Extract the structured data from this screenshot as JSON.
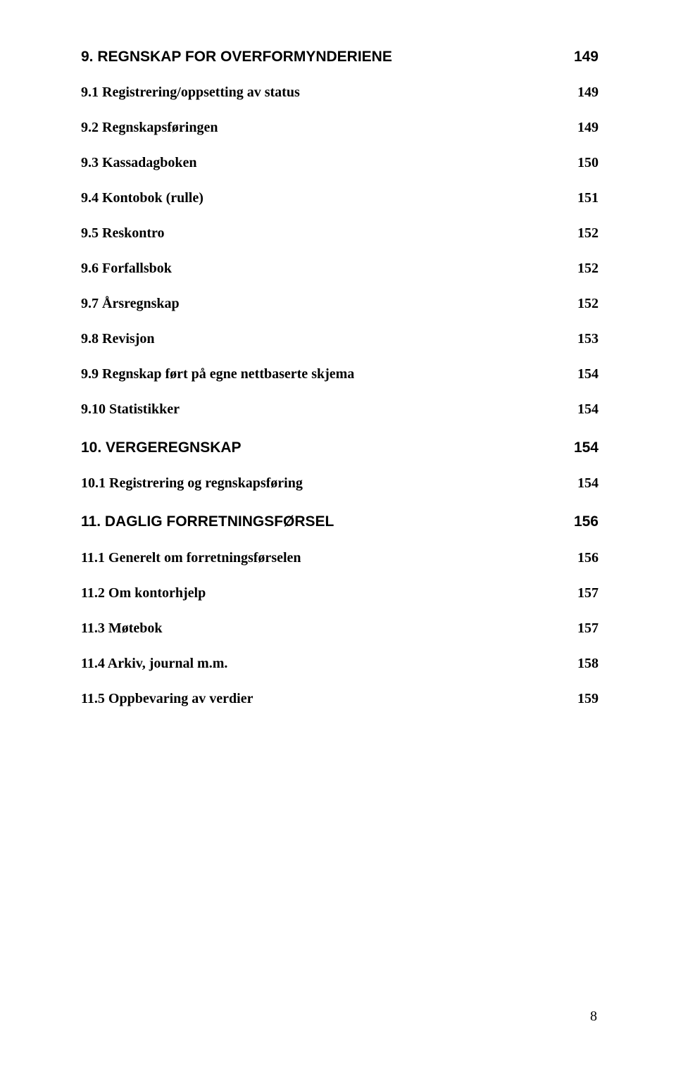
{
  "sec9": {
    "title": "9. REGNSKAP FOR OVERFORMYNDERIENE",
    "page": "149",
    "items": [
      {
        "label": "9.1 Registrering/oppsetting av status",
        "page": "149"
      },
      {
        "label": "9.2 Regnskapsføringen",
        "page": "149"
      },
      {
        "label": "9.3 Kassadagboken",
        "page": "150"
      },
      {
        "label": "9.4 Kontobok (rulle)",
        "page": "151"
      },
      {
        "label": "9.5 Reskontro",
        "page": "152"
      },
      {
        "label": "9.6 Forfallsbok",
        "page": "152"
      },
      {
        "label": "9.7 Årsregnskap",
        "page": "152"
      },
      {
        "label": "9.8 Revisjon",
        "page": "153"
      },
      {
        "label": "9.9 Regnskap ført på egne nettbaserte skjema",
        "page": "154"
      },
      {
        "label": "9.10 Statistikker",
        "page": "154"
      }
    ]
  },
  "sec10": {
    "title": "10. VERGEREGNSKAP",
    "page": "154",
    "items": [
      {
        "label": "10.1 Registrering og regnskapsføring",
        "page": "154"
      }
    ]
  },
  "sec11": {
    "title": "11. DAGLIG FORRETNINGSFØRSEL",
    "page": "156",
    "items": [
      {
        "label": "11.1 Generelt om forretningsførselen",
        "page": "156"
      },
      {
        "label": "11.2 Om kontorhjelp",
        "page": "157"
      },
      {
        "label": "11.3 Møtebok",
        "page": "157"
      },
      {
        "label": "11.4 Arkiv, journal m.m.",
        "page": "158"
      },
      {
        "label": "11.5 Oppbevaring av verdier",
        "page": "159"
      }
    ]
  },
  "footer_page": "8"
}
